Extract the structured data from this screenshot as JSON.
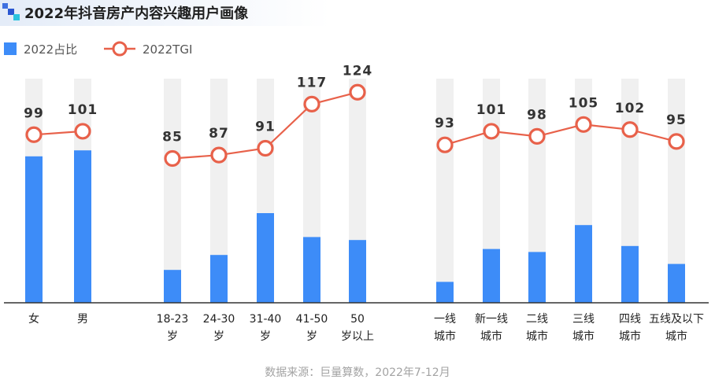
{
  "source": "数据来源：巨量算数，2022年7-12月",
  "colors": {
    "bar": "#3d8cf8",
    "track": "#f0f0f0",
    "line": "#e8614a",
    "title_bg": "#e4ecf8",
    "logo_a": "#3f70e0",
    "logo_b": "#2a57d2",
    "logo_c": "#2cc4de"
  },
  "chart_data": {
    "type": "bar",
    "title": "2022年抖音房产内容兴趣用户画像",
    "categories": [
      [
        "女"
      ],
      [
        "男"
      ],
      [
        "18-23",
        "岁"
      ],
      [
        "24-30",
        "岁"
      ],
      [
        "31-40",
        "岁"
      ],
      [
        "41-50",
        "岁"
      ],
      [
        "50",
        "岁以上"
      ],
      [
        "一线",
        "城市"
      ],
      [
        "新一线",
        "城市"
      ],
      [
        "二线",
        "城市"
      ],
      [
        "三线",
        "城市"
      ],
      [
        "四线",
        "城市"
      ],
      [
        "五线及以下",
        "城市"
      ]
    ],
    "groups": [
      [
        0,
        1
      ],
      [
        2,
        3,
        4,
        5,
        6
      ],
      [
        7,
        8,
        9,
        10,
        11,
        12
      ]
    ],
    "series": [
      {
        "name": "2022占比",
        "type": "bar",
        "unit": "%",
        "values": [
          49,
          51,
          11,
          16,
          30,
          22,
          21,
          7,
          18,
          17,
          26,
          19,
          13
        ]
      },
      {
        "name": "2022TGI",
        "type": "line",
        "values": [
          99,
          101,
          85,
          87,
          91,
          117,
          124,
          93,
          101,
          98,
          105,
          102,
          95
        ]
      }
    ],
    "ylim_share": [
      0,
      75
    ],
    "ylim_tgi": [
      0,
      132
    ],
    "grid": false,
    "legend_position": "top-left"
  }
}
